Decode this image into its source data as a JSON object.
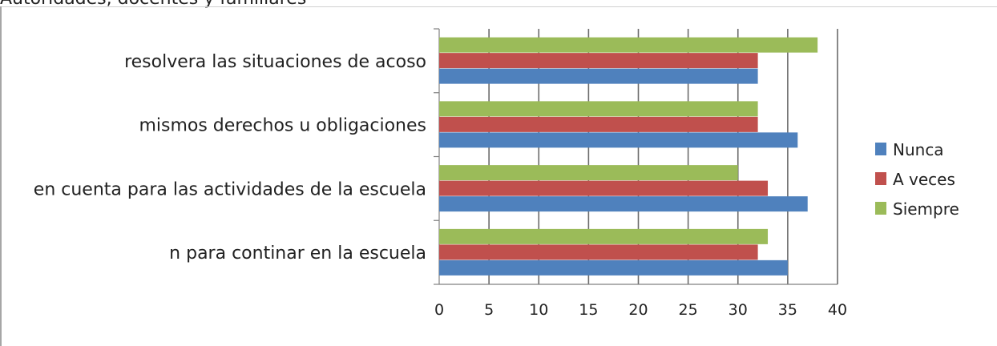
{
  "title_fragment": "Autoridades, docentes y familiares",
  "chart_data": {
    "type": "bar",
    "orientation": "horizontal",
    "categories": [
      "resolvera las situaciones de acoso",
      "mismos derechos u obligaciones",
      "en cuenta para las actividades de la escuela",
      "n para continar en la escuela"
    ],
    "series": [
      {
        "name": "Nunca",
        "color": "#4f81bd",
        "values": [
          32,
          36,
          37,
          35
        ]
      },
      {
        "name": "A veces",
        "color": "#c0504d",
        "values": [
          32,
          32,
          33,
          32
        ]
      },
      {
        "name": "Siempre",
        "color": "#9bbb59",
        "values": [
          38,
          32,
          30,
          33
        ]
      }
    ],
    "xlim": [
      0,
      40
    ],
    "xticks": [
      0,
      5,
      10,
      15,
      20,
      25,
      30,
      35,
      40
    ],
    "grid": true,
    "legend": "right"
  }
}
